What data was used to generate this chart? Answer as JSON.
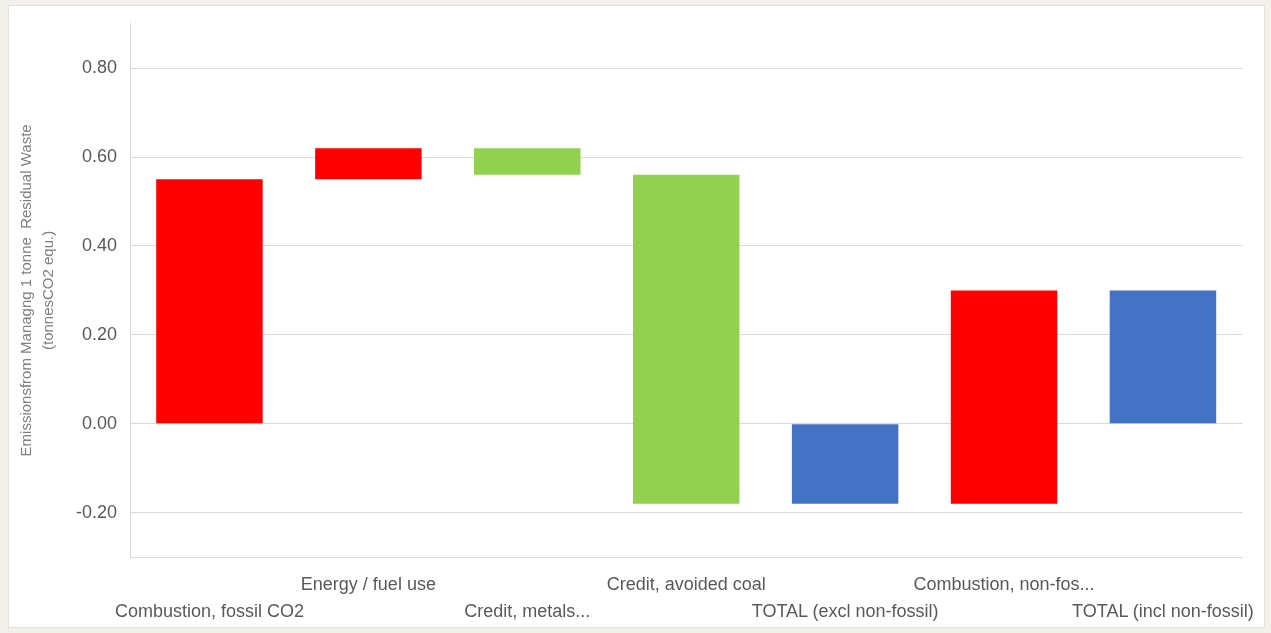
{
  "chart_data": {
    "type": "bar",
    "categories": [
      "Combustion, fossil CO2",
      "Energy / fuel use",
      "Credit, metals...",
      "Credit, avoided coal",
      "TOTAL (excl non-fossil)",
      "Combustion, non-fos...",
      "TOTAL (incl non-fossil)"
    ],
    "values": [
      0.55,
      0.07,
      -0.06,
      -0.74,
      -0.18,
      0.48,
      0.3
    ],
    "base": [
      0,
      0.55,
      0.62,
      0.56,
      0,
      -0.18,
      0
    ],
    "colors": [
      "#ff0000",
      "#ff0000",
      "#92d050",
      "#92d050",
      "#4472c4",
      "#ff0000",
      "#4472c4"
    ],
    "ylabel": "Emissionsfrom Managng 1 tonne  Residual Waste\n(tonnesCO2 equ.)",
    "ylim": [
      -0.3,
      0.9
    ],
    "yticks": [
      {
        "value": -0.2,
        "label": "-0.20"
      },
      {
        "value": 0,
        "label": "0.00"
      },
      {
        "value": 0.2,
        "label": "0.20"
      },
      {
        "value": 0.4,
        "label": "0.40"
      },
      {
        "value": 0.6,
        "label": "0.60"
      },
      {
        "value": 0.8,
        "label": "0.80"
      }
    ],
    "grid": "y",
    "legend": false
  }
}
